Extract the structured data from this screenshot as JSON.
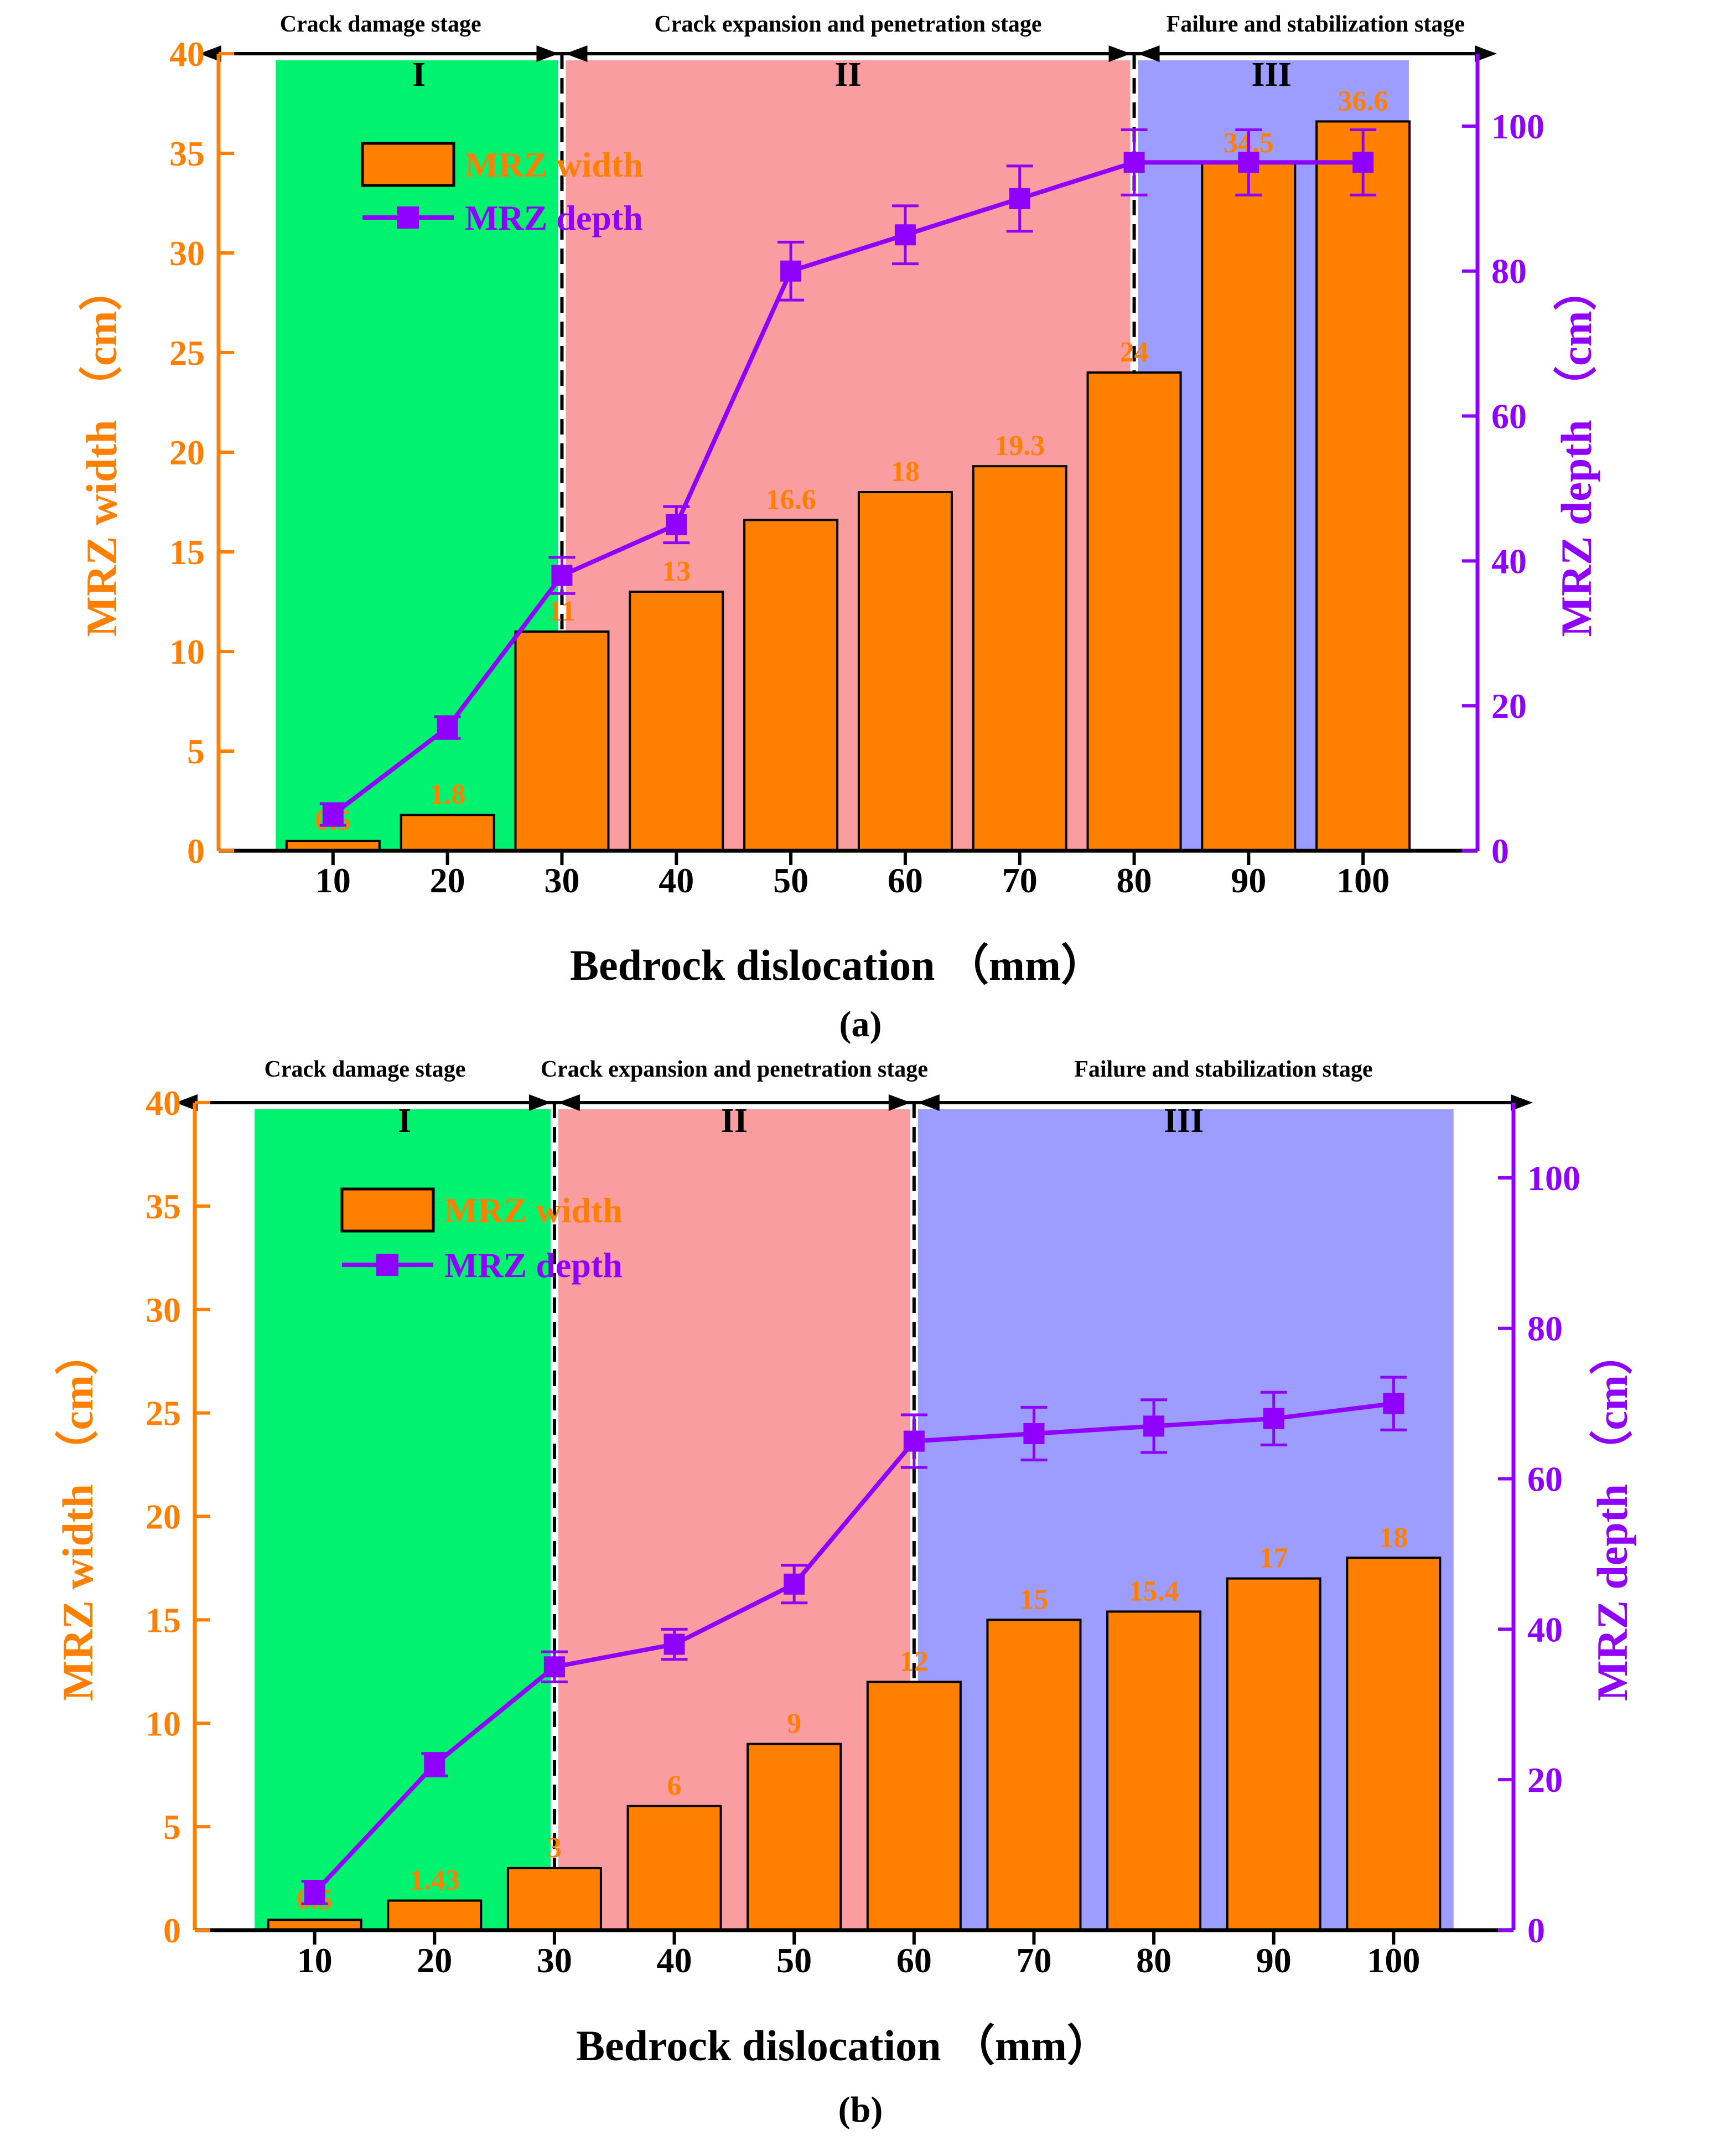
{
  "colors": {
    "width_bar": "#ff7f00",
    "depth_line": "#8f00ff",
    "stage_I": "#00f26e",
    "stage_II": "#fa9da1",
    "stage_III": "#9d9dff",
    "axis_black": "#000000"
  },
  "chart_data": [
    {
      "type": "bar+line",
      "panel_label": "(a)",
      "xlabel": "Bedrock dislocation （mm）",
      "y_left_label": "MRZ width （cm）",
      "y_right_label": "MRZ depth （cm）",
      "x_ticks": [
        "10",
        "20",
        "30",
        "40",
        "50",
        "60",
        "70",
        "80",
        "90",
        "100"
      ],
      "y_left_ticks": [
        "0",
        "5",
        "10",
        "15",
        "20",
        "25",
        "30",
        "35",
        "40"
      ],
      "y_right_ticks": [
        "0",
        "20",
        "40",
        "60",
        "80",
        "100"
      ],
      "ylim_left": [
        0,
        40
      ],
      "ylim_right": [
        0,
        110
      ],
      "categories": [
        10,
        20,
        30,
        40,
        50,
        60,
        70,
        80,
        90,
        100
      ],
      "series": [
        {
          "name": "MRZ width",
          "type": "bar",
          "axis": "left",
          "values": [
            0.5,
            1.8,
            11,
            13,
            16.6,
            18,
            19.3,
            24,
            34.5,
            36.6
          ],
          "labels": [
            "0.5",
            "1.8",
            "11",
            "13",
            "16.6",
            "18",
            "19.3",
            "24",
            "34.5",
            "36.6"
          ]
        },
        {
          "name": "MRZ depth",
          "type": "line",
          "axis": "right",
          "values": [
            5,
            17,
            38,
            45,
            80,
            85,
            90,
            95,
            95,
            95
          ],
          "errors": [
            1.5,
            1.5,
            2.5,
            2.5,
            4,
            4,
            4.5,
            4.5,
            4.5,
            4.5
          ]
        }
      ],
      "legend": {
        "position": "top-left",
        "entries": [
          "MRZ width",
          "MRZ depth"
        ]
      },
      "stages": [
        {
          "numeral": "I",
          "name": "Crack damage stage",
          "x_start": 5,
          "x_end": 30
        },
        {
          "numeral": "II",
          "name": "Crack expansion and penetration stage",
          "x_start": 30,
          "x_end": 80
        },
        {
          "numeral": "III",
          "name": "Failure and stabilization stage",
          "x_start": 80,
          "x_end": 104
        }
      ]
    },
    {
      "type": "bar+line",
      "panel_label": "(b)",
      "xlabel": "Bedrock dislocation （mm）",
      "y_left_label": "MRZ width （cm）",
      "y_right_label": "MRZ depth （cm）",
      "x_ticks": [
        "10",
        "20",
        "30",
        "40",
        "50",
        "60",
        "70",
        "80",
        "90",
        "100"
      ],
      "y_left_ticks": [
        "0",
        "5",
        "10",
        "15",
        "20",
        "25",
        "30",
        "35",
        "40"
      ],
      "y_right_ticks": [
        "0",
        "20",
        "40",
        "60",
        "80",
        "100"
      ],
      "ylim_left": [
        0,
        40
      ],
      "ylim_right": [
        0,
        110
      ],
      "categories": [
        10,
        20,
        30,
        40,
        50,
        60,
        70,
        80,
        90,
        100
      ],
      "series": [
        {
          "name": "MRZ width",
          "type": "bar",
          "axis": "left",
          "values": [
            0.5,
            1.43,
            3,
            6,
            9,
            12,
            15,
            15.4,
            17,
            18
          ],
          "labels": [
            "0.5",
            "1.43",
            "3",
            "6",
            "9",
            "12",
            "15",
            "15.4",
            "17",
            "18"
          ]
        },
        {
          "name": "MRZ depth",
          "type": "line",
          "axis": "right",
          "values": [
            5,
            22,
            35,
            38,
            46,
            65,
            66,
            67,
            68,
            70
          ],
          "errors": [
            1.5,
            1.5,
            2,
            2,
            2.5,
            3.5,
            3.5,
            3.5,
            3.5,
            3.5
          ]
        }
      ],
      "legend": {
        "position": "top-left",
        "entries": [
          "MRZ width",
          "MRZ depth"
        ]
      },
      "stages": [
        {
          "numeral": "I",
          "name": "Crack damage stage",
          "x_start": 5,
          "x_end": 30
        },
        {
          "numeral": "II",
          "name": "Crack expansion and penetration stage",
          "x_start": 30,
          "x_end": 60
        },
        {
          "numeral": "III",
          "name": "Failure and stabilization stage",
          "x_start": 60,
          "x_end": 105
        }
      ]
    }
  ]
}
